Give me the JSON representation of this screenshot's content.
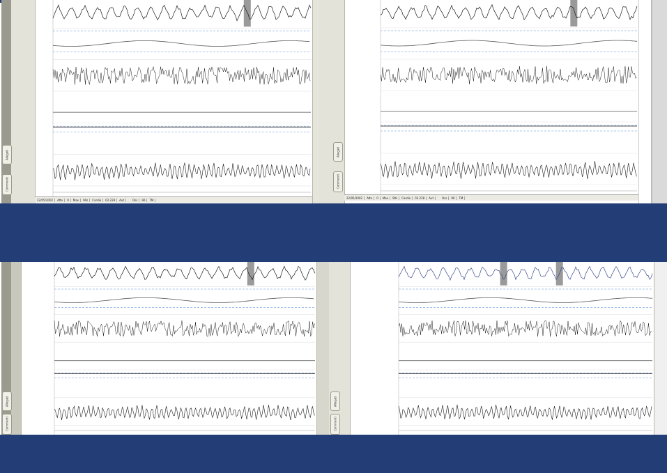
{
  "colors": {
    "band": "#233d77",
    "top_strip": "#233d77",
    "trace": "#1a1a1a",
    "trace_light": "#555555",
    "guide_dashed": "#8fb3e6",
    "grid": "#e2e2e2",
    "event_marker": "#9a9a9a"
  },
  "side_tabs": [
    "Allegati",
    "Commenti"
  ],
  "panels": [
    {
      "id": "top-left",
      "status": [
        "22/05/2002",
        "Attv",
        "0",
        "Max",
        "90s",
        "Cardio",
        "02.228",
        "Aut",
        "",
        "Oss",
        "90",
        "TM"
      ]
    },
    {
      "id": "top-right",
      "status": [
        "22/05/2002",
        "Attv",
        "0",
        "Max",
        "90s",
        "Cardio",
        "02.228",
        "Aut",
        "",
        "Oss",
        "90",
        "TM"
      ]
    },
    {
      "id": "bottom-left",
      "status": []
    },
    {
      "id": "bottom-right",
      "status": []
    }
  ]
}
